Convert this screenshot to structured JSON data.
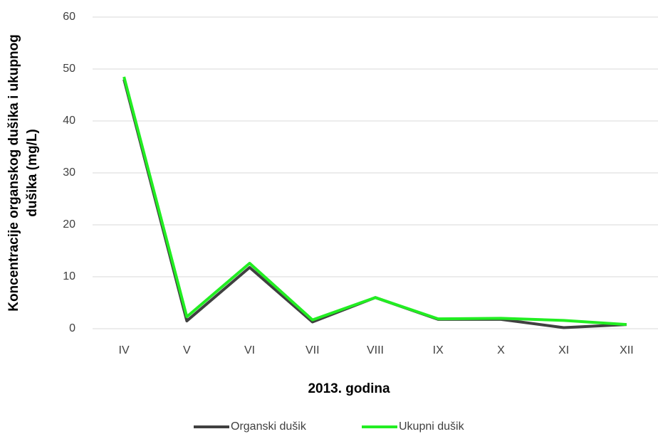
{
  "chart_data": {
    "type": "line",
    "ylabel": [
      "Koncentracije organskog dušika i ukupnog",
      "dušika (mg/L)"
    ],
    "xlabel": "2013. godina",
    "categories": [
      "IV",
      "V",
      "VI",
      "VII",
      "VIII",
      "IX",
      "X",
      "XI",
      "XII"
    ],
    "series": [
      {
        "name": "Organski dušik",
        "color": "#404040",
        "values": [
          48,
          1.5,
          11.8,
          1.3,
          6,
          1.8,
          1.8,
          0.2,
          0.8
        ]
      },
      {
        "name": "Ukupni dušik",
        "color": "#22ee22",
        "values": [
          48.5,
          2.3,
          12.6,
          1.7,
          6,
          1.9,
          2,
          1.6,
          0.8
        ]
      }
    ],
    "ylim": [
      0,
      60
    ],
    "yticks": [
      0,
      10,
      20,
      30,
      40,
      50,
      60
    ],
    "grid": true,
    "legend": "bottom"
  }
}
